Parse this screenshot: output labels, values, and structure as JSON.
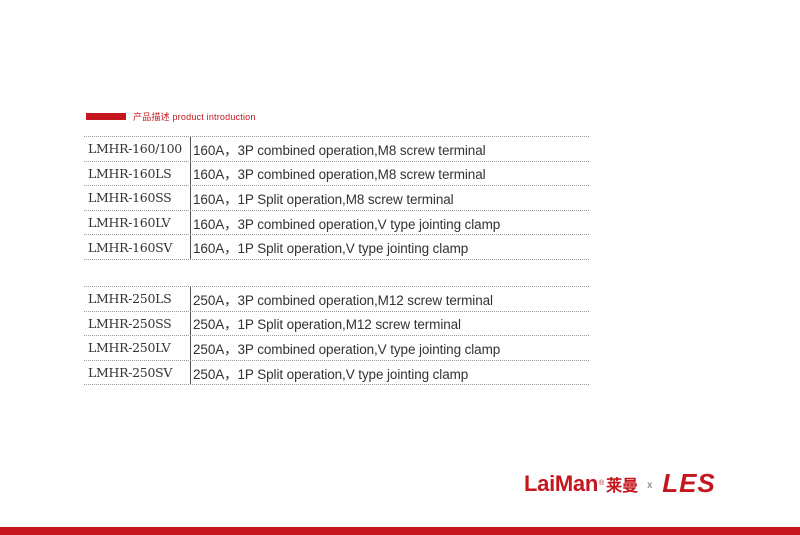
{
  "section": {
    "title": "产品描述 product introduction"
  },
  "tables": [
    {
      "rows": [
        {
          "model": "LMHR-160/100",
          "desc": "160A，3P combined operation,M8 screw terminal"
        },
        {
          "model": "LMHR-160LS",
          "desc": "160A，3P combined operation,M8 screw terminal"
        },
        {
          "model": "LMHR-160SS",
          "desc": "160A，1P Split operation,M8 screw terminal"
        },
        {
          "model": "LMHR-160LV",
          "desc": "160A，3P combined operation,V type jointing clamp"
        },
        {
          "model": "LMHR-160SV",
          "desc": "160A，1P Split operation,V type jointing clamp"
        }
      ]
    },
    {
      "rows": [
        {
          "model": "LMHR-250LS",
          "desc": "250A，3P combined operation,M12 screw terminal"
        },
        {
          "model": "LMHR-250SS",
          "desc": "250A，1P Split operation,M12 screw terminal"
        },
        {
          "model": "LMHR-250LV",
          "desc": "250A，3P combined operation,V type jointing clamp"
        },
        {
          "model": "LMHR-250SV",
          "desc": "250A，1P Split operation,V type jointing clamp"
        }
      ]
    }
  ],
  "logo": {
    "brand": "LaiMan",
    "registered": "®",
    "brand_cn": "莱曼",
    "separator": "x",
    "partner": "LES"
  },
  "colors": {
    "accent": "#c4161c",
    "text": "#333333"
  }
}
